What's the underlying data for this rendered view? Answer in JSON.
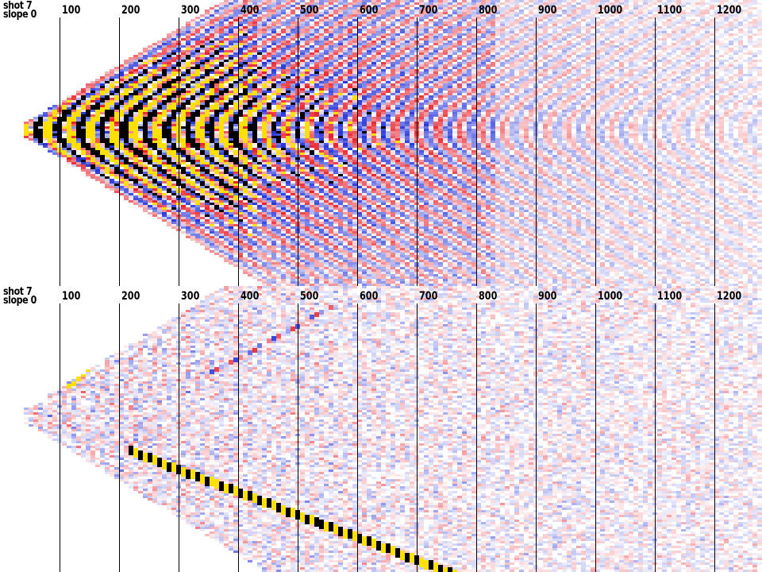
{
  "panels": [
    {
      "id": "top",
      "shot_label": "shot 7",
      "slope_label": "slope 0",
      "mode": "raw"
    },
    {
      "id": "bottom",
      "shot_label": "shot 7",
      "slope_label": "slope 0",
      "mode": "filtered"
    }
  ],
  "axis": {
    "tick_values": [
      "100",
      "200",
      "300",
      "400",
      "500",
      "600",
      "700",
      "800",
      "900",
      "1000",
      "1100",
      "1200"
    ],
    "tick_numbers": [
      100,
      200,
      300,
      400,
      500,
      600,
      700,
      800,
      900,
      1000,
      1100,
      1200
    ],
    "x_range": [
      0,
      1280
    ]
  },
  "colors": {
    "positive": "#e8202a",
    "negative": "#2030d8",
    "clip_high": "#ffe000",
    "clip_low": "#000000",
    "gridline": "#000000",
    "background": "#ffffff"
  }
}
